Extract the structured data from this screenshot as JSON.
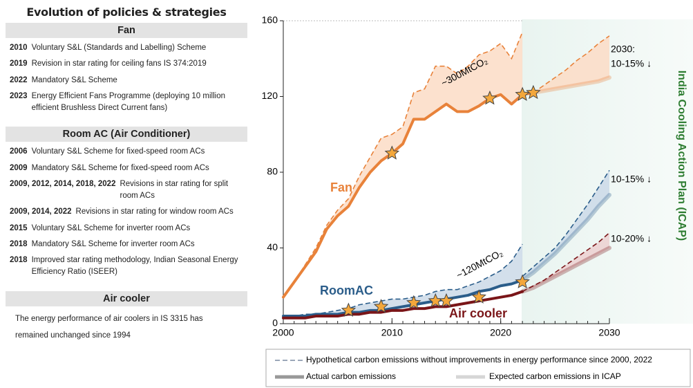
{
  "policies": {
    "title": "Evolution of policies & strategies",
    "sections": [
      {
        "heading": "Fan",
        "items": [
          {
            "year": "2010",
            "text": "Voluntary S&L (Standards and Labelling) Scheme"
          },
          {
            "year": "2019",
            "text": "Revision in star rating for ceiling fans IS 374:2019"
          },
          {
            "year": "2022",
            "text": "Mandatory S&L Scheme"
          },
          {
            "year": "2023",
            "text": "Energy Efficient Fans Programme (deploying 10 million efficient Brushless Direct Current fans)"
          }
        ]
      },
      {
        "heading": "Room AC (Air Conditioner)",
        "items": [
          {
            "year": "2006",
            "text": "Voluntary S&L Scheme for fixed-speed room ACs"
          },
          {
            "year": "2009",
            "text": "Mandatory S&L Scheme for fixed-speed room ACs"
          },
          {
            "year": "2009, 2012, 2014, 2018, 2022",
            "text": "Revisions in star rating for split room ACs"
          },
          {
            "year": "2009, 2014, 2022",
            "text": "Revisions in star rating for window room ACs"
          },
          {
            "year": "2015",
            "text": "Voluntary S&L Scheme for inverter room ACs"
          },
          {
            "year": "2018",
            "text": "Mandatory S&L Scheme for inverter room ACs"
          },
          {
            "year": "2018",
            "text": "Improved star rating methodology, Indian Seasonal Energy Efficiency Ratio (ISEER)"
          }
        ]
      },
      {
        "heading": "Air cooler",
        "text": "The energy performance of air coolers in IS 3315 has remained unchanged since 1994"
      }
    ]
  },
  "chart_data": {
    "type": "line",
    "xlim": [
      2000,
      2030
    ],
    "xticks": [
      2000,
      2010,
      2020,
      2030
    ],
    "ylim": [
      0,
      160
    ],
    "yticks": [
      0,
      40,
      80,
      120,
      160
    ],
    "side_title": "India Cooling Action Plan (ICAP)",
    "series": [
      {
        "name": "Fan",
        "color": "#e8823a",
        "style": "solid",
        "x": [
          2000,
          2001,
          2002,
          2003,
          2004,
          2005,
          2006,
          2007,
          2008,
          2009,
          2010,
          2011,
          2012,
          2013,
          2014,
          2015,
          2016,
          2017,
          2018,
          2019,
          2020,
          2021,
          2022,
          2023
        ],
        "values": [
          14,
          22,
          30,
          38,
          50,
          57,
          62,
          72,
          80,
          86,
          90,
          95,
          108,
          108,
          112,
          116,
          112,
          112,
          115,
          119,
          121,
          116,
          121,
          122
        ]
      },
      {
        "color": "#e8823a",
        "style": "dashed",
        "fill_color": "#fbdcc6",
        "x": [
          2000,
          2001,
          2002,
          2003,
          2004,
          2005,
          2006,
          2007,
          2008,
          2009,
          2010,
          2011,
          2012,
          2013,
          2014,
          2015,
          2016,
          2017,
          2018,
          2019,
          2020,
          2021,
          2022
        ],
        "values": [
          14,
          22,
          31,
          40,
          52,
          60,
          66,
          78,
          88,
          98,
          100,
          104,
          122,
          124,
          136,
          136,
          132,
          136,
          142,
          144,
          148,
          140,
          154
        ]
      },
      {
        "color": "#e8823a",
        "style": "dashed",
        "fill_color": "#fbdcc6",
        "x": [
          2023,
          2024,
          2025,
          2026,
          2027,
          2028,
          2029,
          2030
        ],
        "values": [
          122,
          126,
          130,
          134,
          139,
          143,
          148,
          152
        ]
      },
      {
        "color": "#e8823a",
        "style": "faded",
        "x": [
          2023,
          2024,
          2025,
          2026,
          2027,
          2028,
          2029,
          2030
        ],
        "values": [
          122,
          123,
          124,
          125,
          126,
          127,
          128,
          130
        ]
      },
      {
        "name": "RoomAC",
        "color": "#2b5d8a",
        "style": "solid",
        "x": [
          2000,
          2001,
          2002,
          2003,
          2004,
          2005,
          2006,
          2007,
          2008,
          2009,
          2010,
          2011,
          2012,
          2013,
          2014,
          2015,
          2016,
          2017,
          2018,
          2019,
          2020,
          2021,
          2022
        ],
        "values": [
          4,
          4,
          4,
          5,
          5,
          5,
          6,
          6,
          7,
          7,
          8,
          9,
          10,
          11,
          12,
          13,
          14,
          15,
          17,
          18,
          20,
          21,
          23
        ]
      },
      {
        "color": "#2b5d8a",
        "style": "dashed",
        "fill_color": "#cbd9e8",
        "x": [
          2000,
          2001,
          2002,
          2003,
          2004,
          2005,
          2006,
          2007,
          2008,
          2009,
          2010,
          2011,
          2012,
          2013,
          2014,
          2015,
          2016,
          2017,
          2018,
          2019,
          2020,
          2021,
          2022
        ],
        "values": [
          4,
          4,
          5,
          5,
          6,
          7,
          8,
          10,
          11,
          12,
          13,
          13,
          14,
          15,
          17,
          18,
          18,
          20,
          22,
          25,
          28,
          33,
          42
        ]
      },
      {
        "color": "#2b5d8a",
        "style": "dashed",
        "fill_color": "#cbd9e8",
        "x": [
          2022,
          2023,
          2024,
          2025,
          2026,
          2027,
          2028,
          2029,
          2030
        ],
        "values": [
          25,
          30,
          35,
          40,
          47,
          55,
          63,
          72,
          81
        ]
      },
      {
        "color": "#2b5d8a",
        "style": "faded",
        "x": [
          2022,
          2023,
          2024,
          2025,
          2026,
          2027,
          2028,
          2029,
          2030
        ],
        "values": [
          23,
          27,
          32,
          37,
          43,
          49,
          55,
          62,
          68
        ]
      },
      {
        "name": "Air cooler",
        "color": "#7a1518",
        "style": "solid",
        "x": [
          2000,
          2001,
          2002,
          2003,
          2004,
          2005,
          2006,
          2007,
          2008,
          2009,
          2010,
          2011,
          2012,
          2013,
          2014,
          2015,
          2016,
          2017,
          2018,
          2019,
          2020,
          2021,
          2022
        ],
        "values": [
          3,
          3,
          3,
          4,
          4,
          4,
          5,
          5,
          6,
          6,
          7,
          7,
          8,
          8,
          9,
          9,
          10,
          11,
          12,
          13,
          14,
          15,
          17
        ]
      },
      {
        "color": "#7a1518",
        "style": "dashed",
        "fill_color": "#ecd0d0",
        "x": [
          2022,
          2023,
          2024,
          2025,
          2026,
          2027,
          2028,
          2029,
          2030
        ],
        "values": [
          17,
          20,
          23,
          27,
          31,
          35,
          39,
          43,
          48
        ]
      },
      {
        "color": "#7a1518",
        "style": "faded",
        "x": [
          2022,
          2023,
          2024,
          2025,
          2026,
          2027,
          2028,
          2029,
          2030
        ],
        "values": [
          17,
          19,
          22,
          25,
          28,
          31,
          34,
          37,
          40
        ]
      }
    ],
    "policy_markers": {
      "color": "#f3a73b",
      "x": [
        2006,
        2009,
        2010,
        2012,
        2014,
        2015,
        2018,
        2019,
        2022,
        2022,
        2023
      ],
      "values": [
        7,
        9,
        90,
        11,
        12,
        12,
        14,
        119,
        22,
        121,
        122
      ]
    },
    "annotations": [
      "~300MtCO₂",
      "~120MtCO₂",
      "2030:",
      "10-15% ↓",
      "10-15% ↓",
      "10-20% ↓"
    ],
    "legend": [
      "Hypothetical carbon emissions without improvements in energy performance since 2000, 2022",
      "Actual carbon emissions",
      "Expected carbon emissions in ICAP"
    ]
  }
}
